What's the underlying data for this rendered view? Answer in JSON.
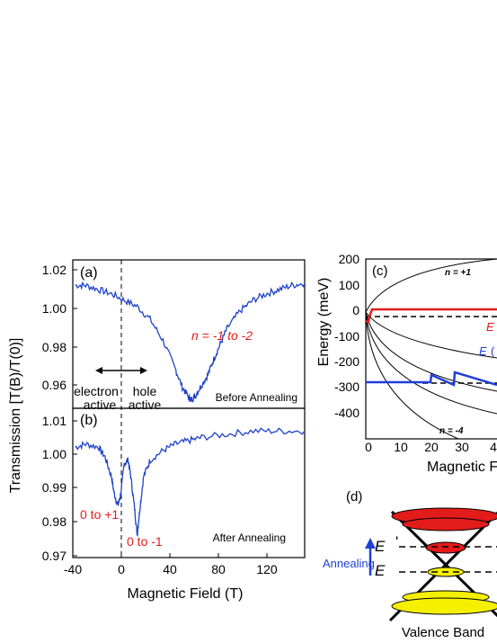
{
  "figure": {
    "ylabel": "Transmission [T(B)/T(0)]",
    "xlabel": "Magnetic Field (T)",
    "panels": [
      "(a)",
      "(b)",
      "(c)",
      "(d)"
    ],
    "colors": {
      "data": "#1f43c8",
      "red": "#e31b1b",
      "blue": "#1f3fd8",
      "yellow": "#f5f000"
    }
  },
  "panel_a": {
    "tag": "(a)",
    "annotation_red": "n = -1 to -2",
    "caption": "Before Annealing",
    "electron_line1": "electron",
    "electron_line2": "active",
    "hole_line1": "hole",
    "hole_line2": "active"
  },
  "panel_b": {
    "tag": "(b)",
    "annotation_left": "0 to +1",
    "annotation_right": "0 to -1",
    "caption": "After Annealing"
  },
  "panel_c": {
    "tag": "(c)",
    "ylabel": "Energy (meV)",
    "xlabel": "Magnetic F",
    "label_top": "n = +1",
    "label_bottom": "n = -4",
    "ef_red": "E",
    "ef_blue": "E",
    "ef_blue_suffix": "(",
    "yticks": [
      "200",
      "100",
      "0",
      "-100",
      "-200",
      "-300",
      "-400"
    ],
    "xticks": [
      "0",
      "10",
      "20",
      "30",
      "4"
    ]
  },
  "panel_d": {
    "tag": "(d)",
    "ef_prime": "E",
    "ef_prime_mark": "'",
    "ef": "E",
    "annealing": "Annealing",
    "valence": "Valence Band"
  },
  "chart_data": [
    {
      "type": "line",
      "title": "(a)",
      "xlabel": "Magnetic Field (T)",
      "ylabel": "Transmission [T(B)/T(0)]",
      "xlim": [
        -40,
        140
      ],
      "ylim": [
        0.95,
        1.02
      ],
      "xticks": [
        -40,
        0,
        40,
        80,
        120
      ],
      "yticks": [
        0.96,
        0.98,
        1.0,
        1.02
      ],
      "series": [
        {
          "x": [
            -38,
            -30,
            -20,
            -10,
            0,
            10,
            20,
            30,
            40,
            45,
            50,
            52,
            55,
            60,
            65,
            70,
            75,
            80,
            90,
            100,
            110,
            120,
            130,
            140
          ],
          "y": [
            1.008,
            1.008,
            1.006,
            1.004,
            1.001,
            0.998,
            0.992,
            0.982,
            0.968,
            0.96,
            0.955,
            0.954,
            0.956,
            0.961,
            0.966,
            0.974,
            0.981,
            0.988,
            0.996,
            1.001,
            1.004,
            1.006,
            1.008,
            1.009
          ]
        }
      ]
    },
    {
      "type": "line",
      "title": "(b)",
      "xlabel": "Magnetic Field (T)",
      "ylabel": "Transmission [T(B)/T(0)]",
      "xlim": [
        -40,
        140
      ],
      "ylim": [
        0.97,
        1.016
      ],
      "xticks": [
        -40,
        0,
        40,
        80,
        120
      ],
      "yticks": [
        0.97,
        0.98,
        0.99,
        1.0,
        1.01
      ],
      "series": [
        {
          "x": [
            -38,
            -30,
            -20,
            -15,
            -10,
            -8,
            -5,
            -3,
            0,
            3,
            5,
            8,
            10,
            12,
            15,
            20,
            30,
            40,
            50,
            60,
            80,
            100,
            120,
            140
          ],
          "y": [
            1.004,
            1.005,
            1.004,
            1.001,
            0.995,
            0.99,
            0.986,
            0.989,
            0.999,
            1.0,
            0.995,
            0.985,
            0.977,
            0.985,
            0.995,
            1.0,
            1.003,
            1.005,
            1.006,
            1.007,
            1.008,
            1.009,
            1.009,
            1.009
          ]
        }
      ]
    },
    {
      "type": "line",
      "title": "(c)",
      "ylabel": "Energy (meV)",
      "xlabel": "Magnetic F",
      "xlim": [
        0,
        45
      ],
      "ylim": [
        -450,
        200
      ],
      "series": [
        {
          "name": "E_F red",
          "x": [
            0,
            1,
            1.5,
            2,
            45
          ],
          "y": [
            -35,
            -40,
            -20,
            0,
            0
          ]
        },
        {
          "name": "E_F blue",
          "x": [
            0,
            19,
            19.5,
            27,
            27.5,
            45
          ],
          "y": [
            -295,
            -295,
            -270,
            -300,
            -260,
            -300
          ]
        }
      ]
    }
  ]
}
